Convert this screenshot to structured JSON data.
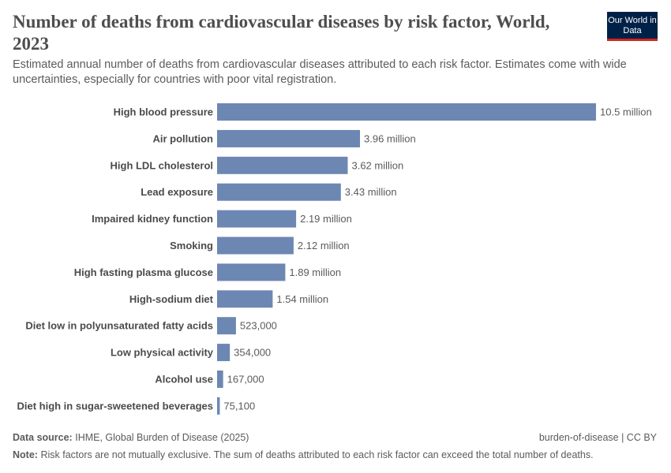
{
  "header": {
    "title": "Number of deaths from cardiovascular diseases by risk factor, World, 2023",
    "subtitle": "Estimated annual number of deaths from cardiovascular diseases attributed to each risk factor. Estimates come with wide uncertainties, especially for countries with poor vital registration.",
    "logo_text": "Our World in Data"
  },
  "footer": {
    "source_label": "Data source:",
    "source": "IHME, Global Burden of Disease (2025)",
    "license": "burden-of-disease | CC BY",
    "note_label": "Note:",
    "note": "Risk factors are not mutually exclusive. The sum of deaths attributed to each risk factor can exceed the total number of deaths."
  },
  "chart_data": {
    "type": "bar",
    "orientation": "horizontal",
    "title": "Number of deaths from cardiovascular diseases by risk factor, World, 2023",
    "bar_color": "#6d87b3",
    "categories": [
      "High blood pressure",
      "Air pollution",
      "High LDL cholesterol",
      "Lead exposure",
      "Impaired kidney function",
      "Smoking",
      "High fasting plasma glucose",
      "High-sodium diet",
      "Diet low in polyunsaturated fatty acids",
      "Low physical activity",
      "Alcohol use",
      "Diet high in sugar-sweetened beverages"
    ],
    "values": [
      10500000,
      3960000,
      3620000,
      3430000,
      2190000,
      2120000,
      1890000,
      1540000,
      523000,
      354000,
      167000,
      75100
    ],
    "data_labels": [
      "10.5 million",
      "3.96 million",
      "3.62 million",
      "3.43 million",
      "2.19 million",
      "2.12 million",
      "1.89 million",
      "1.54 million",
      "523,000",
      "354,000",
      "167,000",
      "75,100"
    ],
    "grid": false
  }
}
